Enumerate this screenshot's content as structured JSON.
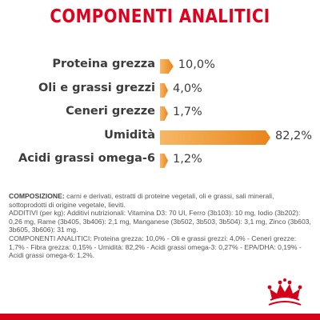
{
  "title": "COMPONENTI ANALITICI",
  "colors": {
    "title": "#e1001e",
    "bar_light": "#f7b765",
    "bar_dark": "#e9841c",
    "accent_red": "#d4001a"
  },
  "chart_data": {
    "type": "bar",
    "orientation": "horizontal",
    "categories": [
      "Proteina grezza",
      "Oli e grassi grezzi",
      "Ceneri grezze",
      "Umidità",
      "Acidi grassi omega-6"
    ],
    "values": [
      10.0,
      4.0,
      1.7,
      82.2,
      1.2
    ],
    "value_labels": [
      "10,0%",
      "4,0%",
      "1,7%",
      "82,2%",
      "1,2%"
    ],
    "unit": "%",
    "xlim": [
      0,
      100
    ]
  },
  "composition": {
    "composizione_label": "COMPOSIZIONE:",
    "composizione_text": " carni e derivati, estratti di proteine vegetali, oli e grassi, sali minerali, sottoprodotti di origine vegetale, lieviti.",
    "additivi_text": "ADDITIVI (per kg): Additivi nutrizionali: Vitamina D3: 70 UI, Ferro (3b103): 10 mg, Iodio (3b202): 0,26 mg, Rame (3b405, 3b406): 2,1 mg, Manganese (3b502, 3b503, 3b504): 3,1 mg, Zinco (3b603, 3b605, 3b606): 31 mg.",
    "componenti_text": "COMPONENTI ANALITICI: Proteina grezza: 10,0% - Oli e grassi grezzi: 4,0% - Ceneri grezze: 1,7% - Fibra grezza: 0,15% - Umidità: 82,2% - Acidi grassi omega-3: 0,27% - EPA/DHA: 0,19% - Acidi grassi omega-6: 1,2%."
  },
  "logo": {
    "icon": "crown-icon"
  }
}
